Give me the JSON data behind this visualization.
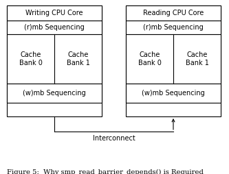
{
  "bg_color": "#ffffff",
  "border_color": "#000000",
  "fig_caption": "Figure 5:  Why smp_read_barrier_depends() is Required",
  "left_cpu_title": "Writing CPU Core",
  "right_cpu_title": "Reading CPU Core",
  "rmb_label": "(r)mb Sequencing",
  "wmb_label": "(w)mb Sequencing",
  "cache_bank0": "Cache\nBank 0",
  "cache_bank1": "Cache\nBank 1",
  "interconnect_label": "Interconnect",
  "font_size": 7.0,
  "caption_font_size": 7.2
}
